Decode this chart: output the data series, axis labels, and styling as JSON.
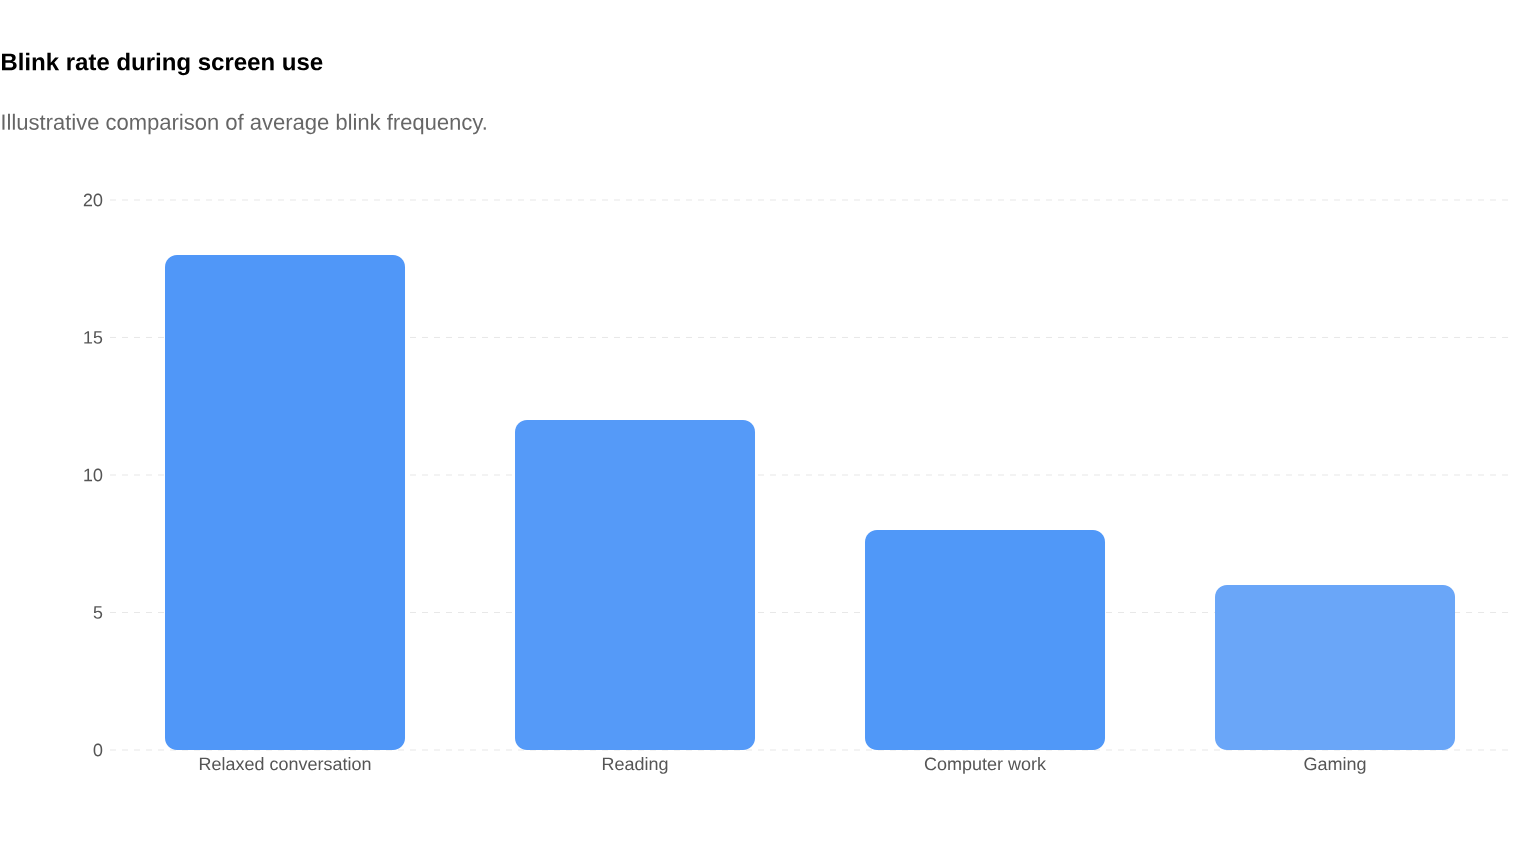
{
  "chart_data": {
    "type": "bar",
    "title": "Blink rate during screen use",
    "subtitle": "Illustrative comparison of average blink frequency.",
    "categories": [
      "Relaxed conversation",
      "Reading",
      "Computer work",
      "Gaming"
    ],
    "values": [
      18,
      12,
      8,
      6
    ],
    "colors": [
      "#5097f8",
      "#559af8",
      "#5098f8",
      "#6aa6f8"
    ],
    "ylim": [
      0,
      20
    ],
    "yticks": [
      0,
      5,
      10,
      15,
      20
    ],
    "grid": "y"
  }
}
